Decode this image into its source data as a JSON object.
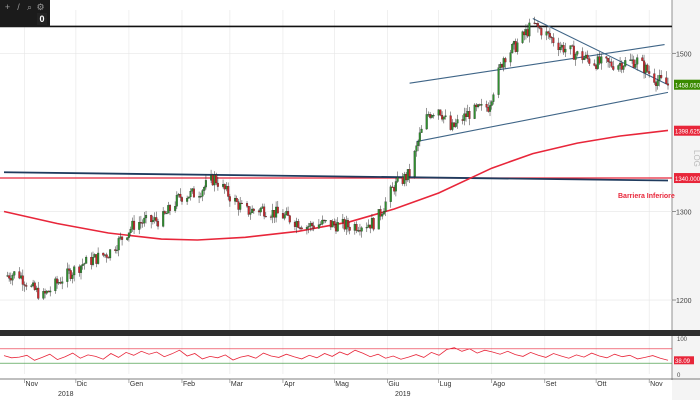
{
  "toolbar": {
    "icons": [
      "move-icon",
      "draw-icon",
      "zoom-icon",
      "settings-icon"
    ],
    "badge": "0"
  },
  "chart_data": [
    {
      "type": "candlestick",
      "scale": "log",
      "x_ticks": [
        "Nov",
        "Dic",
        "Gen",
        "Feb",
        "Mar",
        "Apr",
        "Mag",
        "Giu",
        "Lug",
        "Ago",
        "Set",
        "Ott",
        "Nov"
      ],
      "year_labels": [
        "2018",
        "2019"
      ],
      "y_ticks": [
        1200,
        1300,
        1500
      ],
      "ylim": [
        1170,
        1560
      ],
      "log_label": "LOG",
      "price_tags": [
        {
          "value": "1458.0500",
          "color": "#3a8a00"
        },
        {
          "value": "1398.6251",
          "color": "#e8263a"
        },
        {
          "value": "1340.0000",
          "color": "#e8263a"
        }
      ],
      "annotation": "Barriera Inferiore",
      "levels": {
        "resistance": 1537,
        "barrier": 1340
      },
      "moving_average": [
        {
          "date": "2018-10-20",
          "value": 1300
        },
        {
          "date": "2018-11-20",
          "value": 1286
        },
        {
          "date": "2018-12-20",
          "value": 1275
        },
        {
          "date": "2019-01-20",
          "value": 1268
        },
        {
          "date": "2019-02-10",
          "value": 1267
        },
        {
          "date": "2019-03-10",
          "value": 1270
        },
        {
          "date": "2019-04-10",
          "value": 1277
        },
        {
          "date": "2019-05-10",
          "value": 1288
        },
        {
          "date": "2019-06-05",
          "value": 1303
        },
        {
          "date": "2019-07-01",
          "value": 1322
        },
        {
          "date": "2019-08-01",
          "value": 1352
        },
        {
          "date": "2019-08-25",
          "value": 1370
        },
        {
          "date": "2019-09-20",
          "value": 1383
        },
        {
          "date": "2019-10-15",
          "value": 1392
        },
        {
          "date": "2019-11-12",
          "value": 1399
        }
      ],
      "trendlines": [
        {
          "name": "long-descending",
          "from": {
            "date": "2018-10-20",
            "value": 1347
          },
          "to": {
            "date": "2019-11-12",
            "value": 1337
          }
        },
        {
          "name": "channel-upper",
          "from": {
            "date": "2019-06-14",
            "value": 1460
          },
          "to": {
            "date": "2019-11-10",
            "value": 1512
          }
        },
        {
          "name": "channel-lower",
          "from": {
            "date": "2019-06-18",
            "value": 1385
          },
          "to": {
            "date": "2019-11-12",
            "value": 1448
          }
        },
        {
          "name": "short-descending",
          "from": {
            "date": "2019-08-25",
            "value": 1548
          },
          "to": {
            "date": "2019-11-12",
            "value": 1458
          }
        }
      ],
      "price_path": [
        {
          "date": "2018-10-20",
          "value": 1226
        },
        {
          "date": "2018-10-28",
          "value": 1230
        },
        {
          "date": "2018-11-05",
          "value": 1213
        },
        {
          "date": "2018-11-12",
          "value": 1204
        },
        {
          "date": "2018-11-22",
          "value": 1222
        },
        {
          "date": "2018-12-05",
          "value": 1240
        },
        {
          "date": "2018-12-20",
          "value": 1252
        },
        {
          "date": "2019-01-05",
          "value": 1287
        },
        {
          "date": "2019-01-20",
          "value": 1290
        },
        {
          "date": "2019-01-31",
          "value": 1318
        },
        {
          "date": "2019-02-10",
          "value": 1322
        },
        {
          "date": "2019-02-20",
          "value": 1340
        },
        {
          "date": "2019-03-01",
          "value": 1318
        },
        {
          "date": "2019-03-10",
          "value": 1300
        },
        {
          "date": "2019-03-20",
          "value": 1303
        },
        {
          "date": "2019-04-01",
          "value": 1295
        },
        {
          "date": "2019-04-15",
          "value": 1283
        },
        {
          "date": "2019-04-25",
          "value": 1286
        },
        {
          "date": "2019-05-10",
          "value": 1283
        },
        {
          "date": "2019-05-25",
          "value": 1287
        },
        {
          "date": "2019-06-05",
          "value": 1330
        },
        {
          "date": "2019-06-14",
          "value": 1345
        },
        {
          "date": "2019-06-20",
          "value": 1392
        },
        {
          "date": "2019-06-25",
          "value": 1420
        },
        {
          "date": "2019-07-01",
          "value": 1428
        },
        {
          "date": "2019-07-08",
          "value": 1400
        },
        {
          "date": "2019-07-18",
          "value": 1420
        },
        {
          "date": "2019-07-30",
          "value": 1430
        },
        {
          "date": "2019-08-08",
          "value": 1495
        },
        {
          "date": "2019-08-15",
          "value": 1510
        },
        {
          "date": "2019-08-25",
          "value": 1540
        },
        {
          "date": "2019-09-01",
          "value": 1528
        },
        {
          "date": "2019-09-10",
          "value": 1510
        },
        {
          "date": "2019-09-20",
          "value": 1498
        },
        {
          "date": "2019-09-30",
          "value": 1488
        },
        {
          "date": "2019-10-10",
          "value": 1485
        },
        {
          "date": "2019-10-25",
          "value": 1490
        },
        {
          "date": "2019-11-05",
          "value": 1465
        },
        {
          "date": "2019-11-12",
          "value": 1458
        }
      ]
    },
    {
      "type": "line",
      "name": "oscillator",
      "y_ticks": [
        0,
        100
      ],
      "current_value": "38.09",
      "levels": [
        70,
        30
      ],
      "ylim": [
        0,
        100
      ],
      "values": [
        51,
        45,
        47,
        52,
        38,
        46,
        55,
        40,
        48,
        58,
        44,
        53,
        49,
        41,
        57,
        46,
        60,
        52,
        63,
        55,
        61,
        48,
        56,
        66,
        50,
        57,
        42,
        49,
        45,
        53,
        39,
        47,
        51,
        44,
        58,
        50,
        46,
        55,
        48,
        42,
        52,
        45,
        57,
        49,
        61,
        53,
        66,
        58,
        48,
        55,
        44,
        50,
        41,
        47,
        54,
        46,
        60,
        52,
        68,
        73,
        63,
        70,
        58,
        66,
        61,
        55,
        63,
        54,
        49,
        60,
        52,
        46,
        57,
        50,
        44,
        53,
        47,
        58,
        50,
        45,
        55,
        48,
        52,
        42,
        46,
        51,
        44,
        38
      ]
    }
  ]
}
